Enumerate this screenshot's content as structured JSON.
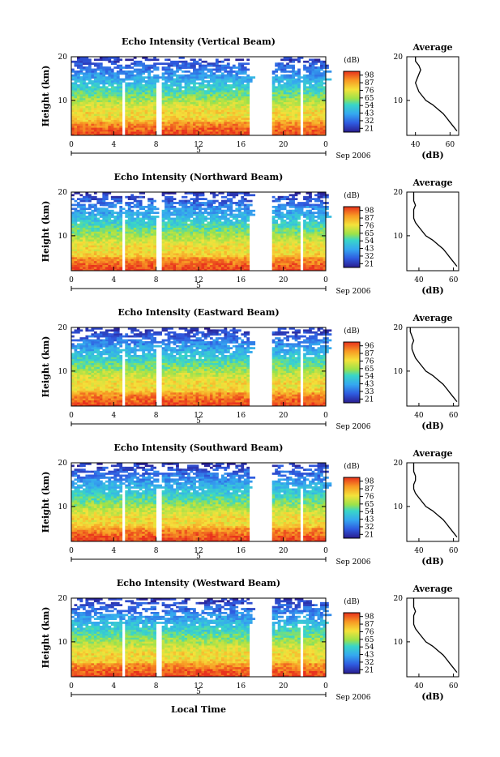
{
  "figure": {
    "shared_xlabel": "Local Time",
    "date_label": "Sep 2006",
    "colorbar_unit": "(dB)",
    "avg_title": "Average",
    "avg_xlabel": "(dB)",
    "height_label": "Height (km)",
    "day_label": "5"
  },
  "chart_data": [
    {
      "type": "heatmap",
      "title": "Echo Intensity (Vertical Beam)",
      "xlabel": "",
      "ylabel": "Height (km)",
      "x_ticks": [
        "0",
        "4",
        "8",
        "12",
        "16",
        "20",
        "0"
      ],
      "y_ticks": [
        "10",
        "20"
      ],
      "xlim": [
        0,
        24
      ],
      "ylim": [
        2,
        20
      ],
      "gaps_hours": [
        [
          4.8,
          5.1
        ],
        [
          8.1,
          8.4
        ],
        [
          16.9,
          18.9
        ],
        [
          21.6,
          21.9
        ]
      ],
      "colorbar_ticks": [
        "98",
        "87",
        "76",
        "65",
        "54",
        "43",
        "32",
        "21"
      ],
      "colorbar_range": [
        21,
        98
      ],
      "avg_profile": {
        "title": "Average",
        "xlabel": "(dB)",
        "x_ticks": [
          "40",
          "60"
        ],
        "xlim": [
          35,
          65
        ],
        "y_ticks": [
          "10",
          "20"
        ],
        "ylim": [
          2,
          20
        ],
        "values": [
          [
            3,
            64
          ],
          [
            4,
            62
          ],
          [
            5,
            60
          ],
          [
            6,
            58
          ],
          [
            7,
            56
          ],
          [
            8,
            53
          ],
          [
            9,
            50
          ],
          [
            10,
            46
          ],
          [
            11,
            44
          ],
          [
            12,
            42
          ],
          [
            13,
            41
          ],
          [
            14,
            40
          ],
          [
            15,
            41
          ],
          [
            16,
            42
          ],
          [
            17,
            43
          ],
          [
            18,
            42
          ],
          [
            19,
            40
          ],
          [
            20,
            40
          ]
        ]
      }
    },
    {
      "type": "heatmap",
      "title": "Echo Intensity (Northward Beam)",
      "xlabel": "",
      "ylabel": "Height (km)",
      "x_ticks": [
        "0",
        "4",
        "8",
        "12",
        "16",
        "20",
        "0"
      ],
      "y_ticks": [
        "10",
        "20"
      ],
      "xlim": [
        0,
        24
      ],
      "ylim": [
        2,
        20
      ],
      "gaps_hours": [
        [
          4.8,
          5.1
        ],
        [
          8.1,
          8.4
        ],
        [
          16.9,
          18.9
        ],
        [
          21.6,
          21.9
        ]
      ],
      "colorbar_ticks": [
        "98",
        "87",
        "76",
        "65",
        "54",
        "43",
        "32",
        "21"
      ],
      "colorbar_range": [
        21,
        98
      ],
      "avg_profile": {
        "title": "Average",
        "xlabel": "(dB)",
        "x_ticks": [
          "40",
          "60"
        ],
        "xlim": [
          33,
          63
        ],
        "y_ticks": [
          "10",
          "20"
        ],
        "ylim": [
          2,
          20
        ],
        "values": [
          [
            3,
            62
          ],
          [
            4,
            60
          ],
          [
            5,
            58
          ],
          [
            6,
            56
          ],
          [
            7,
            54
          ],
          [
            8,
            51
          ],
          [
            9,
            48
          ],
          [
            10,
            44
          ],
          [
            11,
            42
          ],
          [
            12,
            40
          ],
          [
            13,
            38
          ],
          [
            14,
            37
          ],
          [
            15,
            37
          ],
          [
            16,
            37
          ],
          [
            17,
            38
          ],
          [
            18,
            37
          ],
          [
            19,
            37
          ],
          [
            20,
            37
          ]
        ]
      }
    },
    {
      "type": "heatmap",
      "title": "Echo Intensity (Eastward Beam)",
      "xlabel": "",
      "ylabel": "Height (km)",
      "x_ticks": [
        "0",
        "4",
        "8",
        "12",
        "16",
        "20",
        "0"
      ],
      "y_ticks": [
        "10",
        "20"
      ],
      "xlim": [
        0,
        24
      ],
      "ylim": [
        2,
        20
      ],
      "gaps_hours": [
        [
          4.8,
          5.1
        ],
        [
          8.1,
          8.4
        ],
        [
          16.9,
          18.9
        ],
        [
          21.6,
          21.9
        ]
      ],
      "colorbar_ticks": [
        "96",
        "87",
        "76",
        "65",
        "54",
        "43",
        "33",
        "21"
      ],
      "colorbar_range": [
        21,
        96
      ],
      "avg_profile": {
        "title": "Average",
        "xlabel": "(dB)",
        "x_ticks": [
          "40",
          "60"
        ],
        "xlim": [
          33,
          63
        ],
        "y_ticks": [
          "10",
          "20"
        ],
        "ylim": [
          2,
          20
        ],
        "values": [
          [
            3,
            62
          ],
          [
            4,
            60
          ],
          [
            5,
            58
          ],
          [
            6,
            56
          ],
          [
            7,
            54
          ],
          [
            8,
            51
          ],
          [
            9,
            48
          ],
          [
            10,
            44
          ],
          [
            11,
            42
          ],
          [
            12,
            40
          ],
          [
            13,
            38
          ],
          [
            14,
            37
          ],
          [
            15,
            36
          ],
          [
            16,
            36
          ],
          [
            17,
            37
          ],
          [
            18,
            36
          ],
          [
            19,
            35
          ],
          [
            20,
            35
          ]
        ]
      }
    },
    {
      "type": "heatmap",
      "title": "Echo Intensity (Southward Beam)",
      "xlabel": "",
      "ylabel": "Height (km)",
      "x_ticks": [
        "0",
        "4",
        "8",
        "12",
        "16",
        "20",
        "0"
      ],
      "y_ticks": [
        "10",
        "20"
      ],
      "xlim": [
        0,
        24
      ],
      "ylim": [
        2,
        20
      ],
      "gaps_hours": [
        [
          4.8,
          5.1
        ],
        [
          8.1,
          8.4
        ],
        [
          16.9,
          18.9
        ],
        [
          21.6,
          21.9
        ]
      ],
      "colorbar_ticks": [
        "98",
        "87",
        "76",
        "65",
        "54",
        "43",
        "32",
        "21"
      ],
      "colorbar_range": [
        21,
        98
      ],
      "avg_profile": {
        "title": "Average",
        "xlabel": "(dB)",
        "x_ticks": [
          "40",
          "60"
        ],
        "xlim": [
          33,
          63
        ],
        "y_ticks": [
          "10",
          "20"
        ],
        "ylim": [
          2,
          20
        ],
        "values": [
          [
            3,
            62
          ],
          [
            4,
            60
          ],
          [
            5,
            58
          ],
          [
            6,
            56
          ],
          [
            7,
            54
          ],
          [
            8,
            51
          ],
          [
            9,
            48
          ],
          [
            10,
            44
          ],
          [
            11,
            42
          ],
          [
            12,
            40
          ],
          [
            13,
            38
          ],
          [
            14,
            37
          ],
          [
            15,
            37
          ],
          [
            16,
            38
          ],
          [
            17,
            38
          ],
          [
            18,
            37
          ],
          [
            19,
            37
          ],
          [
            20,
            37
          ]
        ]
      }
    },
    {
      "type": "heatmap",
      "title": "Echo Intensity (Westward Beam)",
      "xlabel": "Local Time",
      "ylabel": "Height (km)",
      "x_ticks": [
        "0",
        "4",
        "8",
        "12",
        "16",
        "20",
        "0"
      ],
      "y_ticks": [
        "10",
        "20"
      ],
      "xlim": [
        0,
        24
      ],
      "ylim": [
        2,
        20
      ],
      "gaps_hours": [
        [
          4.8,
          5.1
        ],
        [
          8.1,
          8.4
        ],
        [
          16.9,
          18.9
        ],
        [
          21.6,
          21.9
        ]
      ],
      "colorbar_ticks": [
        "98",
        "87",
        "76",
        "65",
        "54",
        "43",
        "32",
        "21"
      ],
      "colorbar_range": [
        21,
        98
      ],
      "avg_profile": {
        "title": "Average",
        "xlabel": "(dB)",
        "x_ticks": [
          "40",
          "60"
        ],
        "xlim": [
          33,
          63
        ],
        "y_ticks": [
          "10",
          "20"
        ],
        "ylim": [
          2,
          20
        ],
        "values": [
          [
            3,
            62
          ],
          [
            4,
            60
          ],
          [
            5,
            58
          ],
          [
            6,
            56
          ],
          [
            7,
            54
          ],
          [
            8,
            51
          ],
          [
            9,
            48
          ],
          [
            10,
            44
          ],
          [
            11,
            42
          ],
          [
            12,
            40
          ],
          [
            13,
            38
          ],
          [
            14,
            37
          ],
          [
            15,
            37
          ],
          [
            16,
            37
          ],
          [
            17,
            38
          ],
          [
            18,
            37
          ],
          [
            19,
            37
          ],
          [
            20,
            37
          ]
        ]
      }
    }
  ]
}
